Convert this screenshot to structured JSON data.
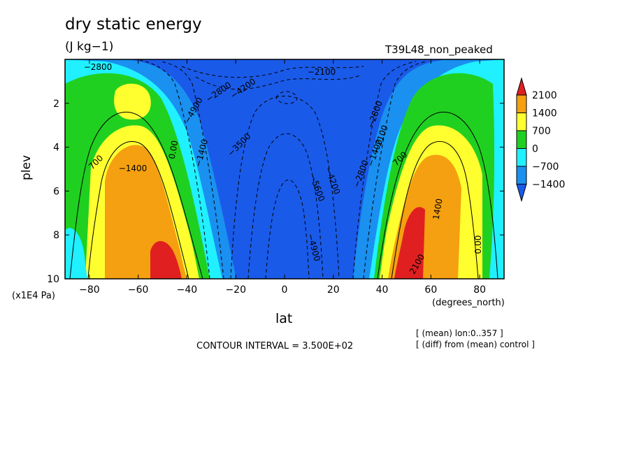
{
  "chart_data": {
    "type": "heatmap",
    "title": "dry static energy",
    "units": "(J kg−1)",
    "run_label": "T39L48_non_peaked",
    "xlabel": "lat",
    "x_unit": "(degrees_north)",
    "ylabel": "plev",
    "y_unit": "(x1E4 Pa)",
    "xlim": [
      -90,
      90
    ],
    "ylim": [
      0,
      10
    ],
    "x_ticks": [
      "−80",
      "−60",
      "−40",
      "−20",
      "0",
      "20",
      "40",
      "60",
      "80"
    ],
    "y_ticks": [
      "2",
      "4",
      "6",
      "8",
      "10"
    ],
    "colorbar": {
      "labels": [
        "2100",
        "1400",
        "700",
        "0",
        "−700",
        "−1400"
      ],
      "colors": [
        "#e02020",
        "#f5a010",
        "#ffff30",
        "#20d020",
        "#20f0ff",
        "#1a90f0",
        "#1a5ae8"
      ]
    },
    "contour_labels": [
      "−2800",
      "−2100",
      "−1400",
      "−2800",
      "−4200",
      "−4900",
      "−3500",
      "−5600",
      "−4200",
      "−4900",
      "−2800",
      "−2800",
      "−2100",
      "−1400",
      "700",
      "−1400",
      "0.00",
      "700",
      "2100",
      "1400",
      "0.00"
    ],
    "contour_interval": "CONTOUR INTERVAL = 3.500E+02",
    "notes": [
      "[ (mean) lon:0..357 ]",
      "[ (diff) from (mean) control ]"
    ]
  }
}
